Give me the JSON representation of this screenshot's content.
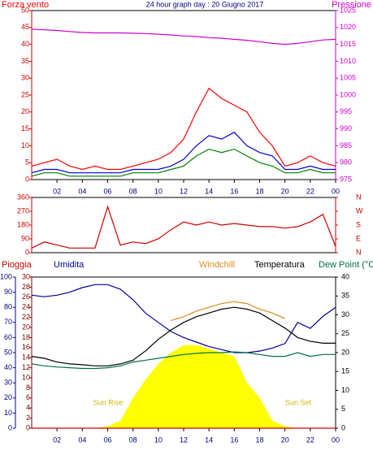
{
  "chart_data": [
    {
      "type": "line",
      "title": "24 hour graph day : 20 Giugno 2017",
      "x": [
        0,
        1,
        2,
        3,
        4,
        5,
        6,
        7,
        8,
        9,
        10,
        11,
        12,
        13,
        14,
        15,
        16,
        17,
        18,
        19,
        20,
        21,
        22,
        23,
        24
      ],
      "xlim": [
        0,
        24
      ],
      "xticks": [
        {
          "value": 2,
          "label": "02"
        },
        {
          "value": 4,
          "label": "04"
        },
        {
          "value": 6,
          "label": "06"
        },
        {
          "value": 8,
          "label": "08"
        },
        10,
        12,
        14,
        16,
        18,
        20,
        22,
        {
          "value": 24,
          "label": "00"
        }
      ],
      "ylim": [
        0,
        50
      ],
      "yticks": [
        0,
        5,
        10,
        15,
        20,
        25,
        30,
        35,
        40,
        45,
        50
      ],
      "ycolor": "#cc0000",
      "y2lim": [
        975,
        1025
      ],
      "y2ticks": [
        975,
        980,
        985,
        990,
        995,
        1000,
        1005,
        1010,
        1015,
        1020,
        1025
      ],
      "y2color": "#cc00cc",
      "series": [
        {
          "name": "Forza vento",
          "color": "#ff0000",
          "values": [
            4,
            5,
            6,
            4,
            3,
            4,
            3,
            3,
            4,
            5,
            6,
            8,
            12,
            20,
            27,
            24,
            22,
            20,
            14,
            10,
            4,
            5,
            7,
            5,
            4
          ]
        },
        {
          "color": "#008000",
          "values": [
            1,
            2,
            2,
            1,
            1,
            1,
            1,
            1,
            2,
            2,
            2,
            3,
            4,
            7,
            9,
            8,
            9,
            7,
            5,
            4,
            2,
            2,
            3,
            2,
            2
          ]
        },
        {
          "color": "#0000cc",
          "values": [
            2,
            3,
            3,
            2,
            2,
            2,
            2,
            2,
            3,
            3,
            3,
            4,
            6,
            10,
            13,
            12,
            14,
            10,
            8,
            7,
            3,
            3,
            4,
            3,
            3
          ]
        },
        {
          "name": "Pressione",
          "color": "#cc00cc",
          "axis": "y2",
          "values": [
            1019.5,
            1019.3,
            1019.1,
            1018.8,
            1018.5,
            1018.4,
            1018.4,
            1018.4,
            1018.3,
            1018.2,
            1018,
            1017.8,
            1017.5,
            1017.3,
            1017,
            1016.8,
            1016.5,
            1016.2,
            1015.8,
            1015.3,
            1015,
            1015.3,
            1015.8,
            1016.3,
            1016.5
          ]
        }
      ]
    },
    {
      "type": "line",
      "x": [
        0,
        1,
        2,
        3,
        4,
        5,
        6,
        7,
        8,
        9,
        10,
        11,
        12,
        13,
        14,
        15,
        16,
        17,
        18,
        19,
        20,
        21,
        22,
        23,
        24
      ],
      "xlim": [
        0,
        24
      ],
      "ylim": [
        0,
        360
      ],
      "yticks": [
        0,
        90,
        180,
        270,
        360
      ],
      "ycolor": "#cc0000",
      "y2lim": [
        0,
        360
      ],
      "y2ticks": [
        {
          "value": 0,
          "label": "N"
        },
        {
          "value": 90,
          "label": "E"
        },
        {
          "value": 180,
          "label": "S"
        },
        {
          "value": 270,
          "label": "W"
        },
        {
          "value": 360,
          "label": "N"
        }
      ],
      "y2color": "#cc0000",
      "series": [
        {
          "color": "#cc0000",
          "values": [
            30,
            70,
            50,
            30,
            30,
            30,
            300,
            50,
            70,
            60,
            90,
            150,
            200,
            180,
            200,
            180,
            190,
            180,
            170,
            170,
            160,
            170,
            200,
            250,
            40
          ]
        }
      ]
    },
    {
      "type": "line",
      "x": [
        0,
        1,
        2,
        3,
        4,
        5,
        6,
        7,
        8,
        9,
        10,
        11,
        12,
        13,
        14,
        15,
        16,
        17,
        18,
        19,
        20,
        21,
        22,
        23,
        24
      ],
      "xlim": [
        0,
        24
      ],
      "xticks": [
        {
          "value": 2,
          "label": "02"
        },
        {
          "value": 4,
          "label": "04"
        },
        {
          "value": 6,
          "label": "06"
        },
        {
          "value": 8,
          "label": "08"
        },
        10,
        12,
        14,
        16,
        18,
        20,
        22,
        {
          "value": 24,
          "label": "00"
        }
      ],
      "ylim": [
        0,
        30
      ],
      "yticks": [
        0,
        2,
        4,
        6,
        8,
        10,
        12,
        14,
        16,
        18,
        20,
        22,
        24,
        26,
        28,
        30
      ],
      "ycolor": "#800000",
      "y3lim": [
        0,
        100
      ],
      "y3ticks": [
        0,
        10,
        20,
        30,
        40,
        50,
        60,
        70,
        80,
        90,
        100
      ],
      "y3color": "#000080",
      "y2lim": [
        0,
        40
      ],
      "y2ticks": [
        0,
        5,
        10,
        15,
        20,
        25,
        30,
        35,
        40
      ],
      "y2color": "#000000",
      "annotations": [
        "Sun Rise",
        "Sun Set"
      ],
      "series": [
        {
          "name": "Pioggia",
          "color": "#cc0000",
          "values": [
            0,
            0,
            0,
            0,
            0,
            0,
            0,
            0,
            0,
            0,
            0,
            0,
            0,
            0,
            0,
            0,
            0,
            0,
            0,
            0,
            0,
            0,
            0,
            0,
            0
          ]
        },
        {
          "name": "Umidita",
          "color": "#000099",
          "axis": "y3",
          "values": [
            88,
            87,
            88,
            90,
            93,
            95,
            95,
            92,
            85,
            76,
            70,
            64,
            60,
            57,
            54,
            52,
            50,
            50,
            51,
            53,
            56,
            70,
            66,
            74,
            80
          ]
        },
        {
          "name": "Windchill",
          "color": "#e08a1e",
          "axis": "y2",
          "values": [
            null,
            null,
            null,
            null,
            null,
            null,
            null,
            null,
            null,
            null,
            null,
            28.5,
            29.5,
            31,
            32,
            33,
            33.5,
            33,
            31.5,
            30.5,
            29,
            null,
            null,
            null,
            null
          ]
        },
        {
          "name": "Temperatura",
          "color": "#000000",
          "axis": "y2",
          "values": [
            19,
            18.5,
            17.5,
            17,
            16.8,
            16.5,
            16.5,
            17,
            18,
            20.5,
            23.5,
            26,
            28,
            29.5,
            30.5,
            31.5,
            32,
            31.5,
            30.5,
            28.5,
            26.5,
            24,
            23,
            22.5,
            22.5
          ]
        },
        {
          "name": "Dew Point (°C",
          "color": "#007040",
          "axis": "y2",
          "values": [
            17,
            16.5,
            16.2,
            16,
            15.8,
            15.8,
            16,
            16.5,
            17.5,
            18,
            18.5,
            19,
            19.5,
            19.8,
            20,
            20,
            20.2,
            20,
            19.5,
            19,
            19,
            20,
            19,
            19.5,
            19.5
          ]
        },
        {
          "type": "area",
          "color": "#ffff00",
          "axis": "y2",
          "values": [
            0,
            0,
            0,
            0,
            0,
            0,
            0.5,
            2,
            8,
            13,
            17,
            20,
            22,
            22,
            21,
            20,
            19,
            12,
            8,
            2,
            0.5,
            0,
            0,
            0,
            0
          ]
        }
      ]
    }
  ]
}
